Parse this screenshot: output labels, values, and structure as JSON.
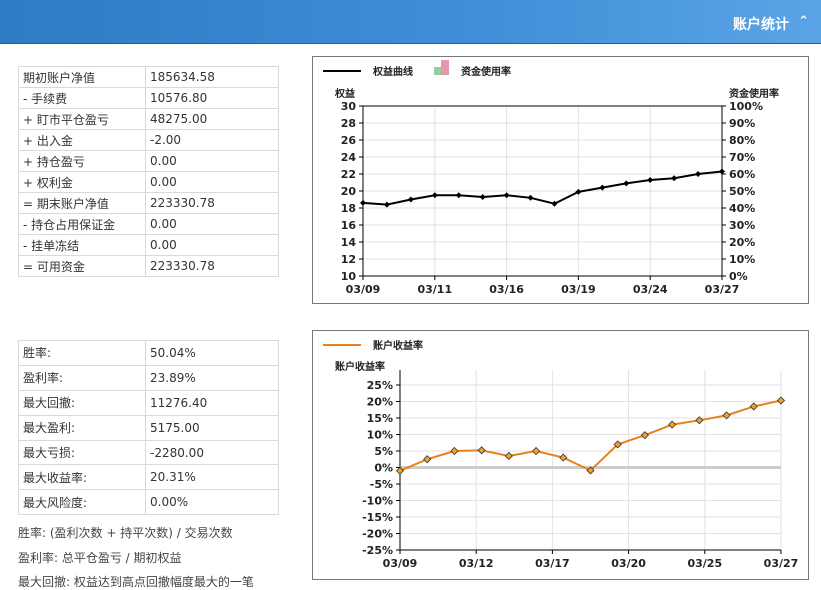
{
  "header": {
    "title": "账户统计",
    "collapse_icon": "double-chevron-up-icon"
  },
  "account_table": [
    {
      "label": "期初账户净值",
      "value": "185634.58"
    },
    {
      "label": "- 手续费",
      "value": "10576.80"
    },
    {
      "label": "+ 盯市平仓盈亏",
      "value": "48275.00"
    },
    {
      "label": "+ 出入金",
      "value": "-2.00"
    },
    {
      "label": "+ 持仓盈亏",
      "value": "0.00"
    },
    {
      "label": "+ 权利金",
      "value": "0.00"
    },
    {
      "label": "= 期末账户净值",
      "value": "223330.78"
    },
    {
      "label": "- 持仓占用保证金",
      "value": "0.00"
    },
    {
      "label": "- 挂单冻结",
      "value": "0.00"
    },
    {
      "label": "= 可用资金",
      "value": "223330.78"
    }
  ],
  "performance_table": [
    {
      "label": "胜率:",
      "value": "50.04%"
    },
    {
      "label": "盈利率:",
      "value": "23.89%"
    },
    {
      "label": "最大回撤:",
      "value": "11276.40"
    },
    {
      "label": "最大盈利:",
      "value": "5175.00"
    },
    {
      "label": "最大亏损:",
      "value": "-2280.00"
    },
    {
      "label": "最大收益率:",
      "value": "20.31%"
    },
    {
      "label": "最大风险度:",
      "value": "0.00%"
    }
  ],
  "notes": [
    "胜率: (盈利次数 + 持平次数) / 交易次数",
    "盈利率: 总平仓盈亏 / 期初权益",
    "最大回撤: 权益达到高点回撤幅度最大的一笔"
  ],
  "chart_data": [
    {
      "type": "line",
      "legend": [
        {
          "name": "权益曲线",
          "color": "#000000"
        },
        {
          "name": "资金使用率",
          "color": "#e39aa8"
        }
      ],
      "ylabel_left": "权益",
      "ylabel_right": "资金使用率",
      "ylim": [
        10,
        30
      ],
      "y2lim": [
        0,
        100
      ],
      "yticks": [
        "10",
        "12",
        "14",
        "16",
        "18",
        "20",
        "22",
        "24",
        "26",
        "28",
        "30"
      ],
      "y2ticks": [
        "0%",
        "10%",
        "20%",
        "30%",
        "40%",
        "50%",
        "60%",
        "70%",
        "80%",
        "90%",
        "100%"
      ],
      "xtick_labels": [
        "03/09",
        "03/11",
        "03/16",
        "03/19",
        "03/24",
        "03/27"
      ],
      "series": [
        {
          "name": "权益曲线",
          "color": "#000000",
          "values": [
            18.6,
            18.4,
            19.0,
            19.5,
            19.5,
            19.3,
            19.5,
            19.2,
            18.5,
            19.9,
            20.4,
            20.9,
            21.3,
            21.5,
            22.0,
            22.3
          ]
        }
      ],
      "grid": true
    },
    {
      "type": "line",
      "legend": [
        {
          "name": "账户收益率",
          "color": "#e8821e"
        }
      ],
      "ylabel": "账户收益率",
      "ylim": [
        -25,
        25
      ],
      "yticks": [
        "25%",
        "20%",
        "15%",
        "10%",
        "5%",
        "0%",
        "-5%",
        "-10%",
        "-15%",
        "-20%",
        "-25%"
      ],
      "xtick_labels": [
        "03/09",
        "03/12",
        "03/17",
        "03/20",
        "03/25",
        "03/27"
      ],
      "series": [
        {
          "name": "账户收益率",
          "color": "#e8821e",
          "values": [
            -1.0,
            2.5,
            5.0,
            5.2,
            3.5,
            5.0,
            3.0,
            -0.9,
            7.0,
            9.8,
            13.0,
            14.3,
            15.8,
            18.5,
            20.3
          ]
        }
      ],
      "grid": true
    }
  ]
}
